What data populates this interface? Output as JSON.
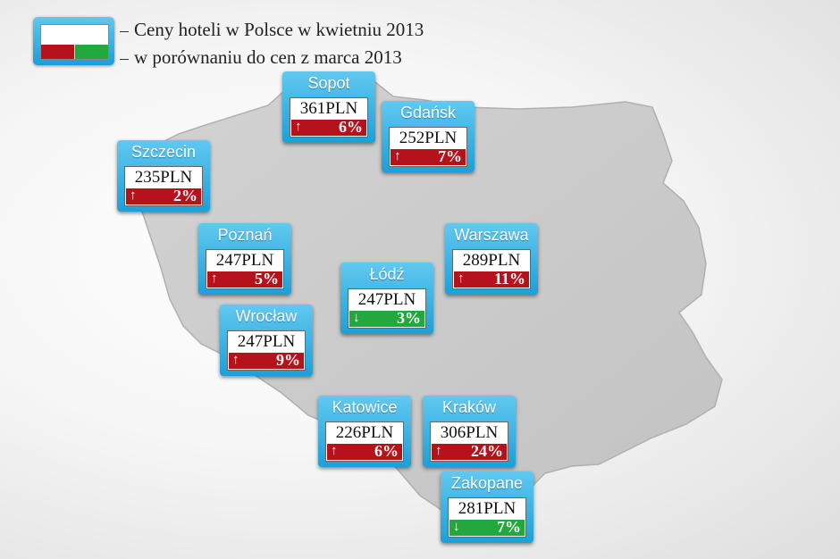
{
  "legend": {
    "line1": "Ceny hoteli w Polsce w kwietniu 2013",
    "line2": "w porównaniu do cen z marca 2013"
  },
  "colors": {
    "increase": "#b5121b",
    "decrease": "#22a83c",
    "card": "#1d9fd9",
    "map_fill": "#cbcbcb"
  },
  "cities": [
    {
      "name": "Sopot",
      "price": "361PLN",
      "arrow": "↑",
      "change": "6%",
      "direction": "up"
    },
    {
      "name": "Gdańsk",
      "price": "252PLN",
      "arrow": "↑",
      "change": "7%",
      "direction": "up"
    },
    {
      "name": "Szczecin",
      "price": "235PLN",
      "arrow": "↑",
      "change": "2%",
      "direction": "up"
    },
    {
      "name": "Poznań",
      "price": "247PLN",
      "arrow": "↑",
      "change": "5%",
      "direction": "up"
    },
    {
      "name": "Warszawa",
      "price": "289PLN",
      "arrow": "↑",
      "change": "11%",
      "direction": "up"
    },
    {
      "name": "Łódź",
      "price": "247PLN",
      "arrow": "↓",
      "change": "3%",
      "direction": "down"
    },
    {
      "name": "Wrocław",
      "price": "247PLN",
      "arrow": "↑",
      "change": "9%",
      "direction": "up"
    },
    {
      "name": "Katowice",
      "price": "226PLN",
      "arrow": "↑",
      "change": "6%",
      "direction": "up"
    },
    {
      "name": "Kraków",
      "price": "306PLN",
      "arrow": "↑",
      "change": "24%",
      "direction": "up"
    },
    {
      "name": "Zakopane",
      "price": "281PLN",
      "arrow": "↓",
      "change": "7%",
      "direction": "down"
    }
  ]
}
